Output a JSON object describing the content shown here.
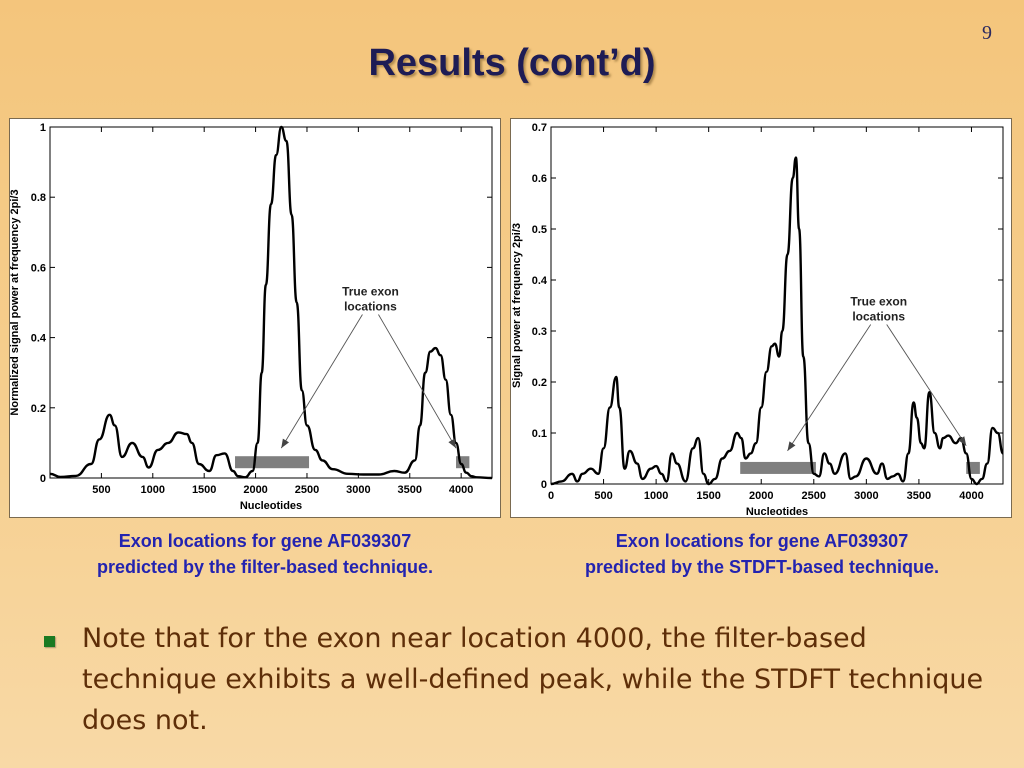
{
  "page_number": "9",
  "title": "Results (cont’d)",
  "captions": {
    "left": [
      "Exon locations for gene AF039307",
      "predicted by the filter-based technique."
    ],
    "right": [
      "Exon locations for gene AF039307",
      "predicted by the STDFT-based technique."
    ]
  },
  "bullet": {
    "text": "Note that for the exon near location 4000, the filter-based technique exhibits a well-defined peak, while the STDFT technique does not.",
    "color": "#1b7a22"
  },
  "chart_data": [
    {
      "type": "line",
      "xlabel": "Nucleotides",
      "ylabel": "Normalized signal power at frequency 2pi/3",
      "xlim": [
        0,
        4300
      ],
      "ylim": [
        0,
        1
      ],
      "xticks": [
        500,
        1000,
        1500,
        2000,
        2500,
        3000,
        3500,
        4000
      ],
      "yticks": [
        0,
        0.2,
        0.4,
        0.6,
        0.8,
        1
      ],
      "grid": false,
      "series": [
        {
          "x": [
            0,
            100,
            250,
            400,
            480,
            580,
            630,
            700,
            800,
            900,
            960,
            1050,
            1150,
            1250,
            1330,
            1380,
            1450,
            1550,
            1620,
            1700,
            1780,
            1830,
            1900,
            1970,
            2020,
            2060,
            2100,
            2150,
            2200,
            2250,
            2300,
            2350,
            2400,
            2450,
            2500,
            2580,
            2650,
            2750,
            2900,
            3050,
            3200,
            3350,
            3450,
            3550,
            3600,
            3650,
            3700,
            3750,
            3800,
            3850,
            3900,
            3950,
            4000,
            4050,
            4100,
            4150,
            4300
          ],
          "y": [
            0.012,
            0.003,
            0.006,
            0.04,
            0.11,
            0.18,
            0.15,
            0.06,
            0.1,
            0.06,
            0.03,
            0.08,
            0.1,
            0.13,
            0.125,
            0.1,
            0.04,
            0.02,
            0.065,
            0.07,
            0.02,
            0.005,
            0.002,
            0.02,
            0.1,
            0.3,
            0.55,
            0.78,
            0.92,
            1.0,
            0.96,
            0.75,
            0.5,
            0.25,
            0.15,
            0.08,
            0.05,
            0.025,
            0.012,
            0.01,
            0.01,
            0.02,
            0.015,
            0.05,
            0.15,
            0.3,
            0.36,
            0.37,
            0.35,
            0.28,
            0.18,
            0.1,
            0.04,
            0.015,
            0.005,
            0.002,
            0.0
          ]
        }
      ],
      "exon_bars": [
        [
          1800,
          2520
        ],
        [
          3950,
          4080
        ]
      ],
      "annotation": {
        "lines": [
          "True exon",
          "locations"
        ],
        "x": 1050,
        "y": 0.52,
        "arrow_targets": [
          [
            2250,
            0.085
          ],
          [
            3950,
            0.085
          ]
        ]
      }
    },
    {
      "type": "line",
      "xlabel": "Nucleotides",
      "ylabel": "Signal power at frequency 2pi/3",
      "xlim": [
        0,
        4300
      ],
      "ylim": [
        0,
        0.7
      ],
      "xticks": [
        0,
        500,
        1000,
        1500,
        2000,
        2500,
        3000,
        3500,
        4000
      ],
      "yticks": [
        0,
        0.1,
        0.2,
        0.3,
        0.4,
        0.5,
        0.6,
        0.7
      ],
      "grid": false,
      "series": [
        {
          "x": [
            0,
            100,
            200,
            250,
            300,
            380,
            450,
            500,
            560,
            620,
            650,
            700,
            750,
            820,
            870,
            950,
            1000,
            1050,
            1100,
            1150,
            1200,
            1280,
            1350,
            1400,
            1450,
            1500,
            1560,
            1630,
            1700,
            1770,
            1810,
            1850,
            1900,
            1950,
            2000,
            2050,
            2100,
            2130,
            2170,
            2200,
            2250,
            2300,
            2330,
            2360,
            2400,
            2450,
            2500,
            2550,
            2600,
            2650,
            2700,
            2800,
            2850,
            2900,
            3000,
            3100,
            3150,
            3200,
            3250,
            3300,
            3350,
            3400,
            3450,
            3480,
            3520,
            3550,
            3600,
            3650,
            3700,
            3730,
            3780,
            3850,
            3900,
            3950,
            4000,
            4050,
            4100,
            4150,
            4200,
            4250,
            4300
          ],
          "y": [
            0.0,
            0.005,
            0.02,
            0.005,
            0.02,
            0.03,
            0.02,
            0.07,
            0.15,
            0.21,
            0.15,
            0.03,
            0.065,
            0.04,
            0.01,
            0.03,
            0.035,
            0.02,
            0.005,
            0.06,
            0.04,
            0.005,
            0.07,
            0.09,
            0.02,
            0.0,
            0.01,
            0.05,
            0.065,
            0.1,
            0.09,
            0.05,
            0.06,
            0.08,
            0.15,
            0.22,
            0.27,
            0.275,
            0.25,
            0.3,
            0.45,
            0.6,
            0.64,
            0.5,
            0.25,
            0.08,
            0.02,
            0.015,
            0.06,
            0.04,
            0.02,
            0.06,
            0.01,
            0.015,
            0.05,
            0.02,
            0.04,
            0.01,
            0.015,
            0.02,
            0.005,
            0.06,
            0.16,
            0.13,
            0.08,
            0.07,
            0.18,
            0.1,
            0.07,
            0.09,
            0.095,
            0.08,
            0.09,
            0.06,
            0.01,
            0.0,
            0.01,
            0.04,
            0.11,
            0.1,
            0.06
          ]
        }
      ],
      "exon_bars": [
        [
          1800,
          2520
        ],
        [
          3950,
          4080
        ]
      ],
      "annotation": {
        "lines": [
          "True exon",
          "locations"
        ],
        "x": 1050,
        "y": 0.35,
        "arrow_targets": [
          [
            2250,
            0.065
          ],
          [
            3950,
            0.075
          ]
        ]
      }
    }
  ]
}
